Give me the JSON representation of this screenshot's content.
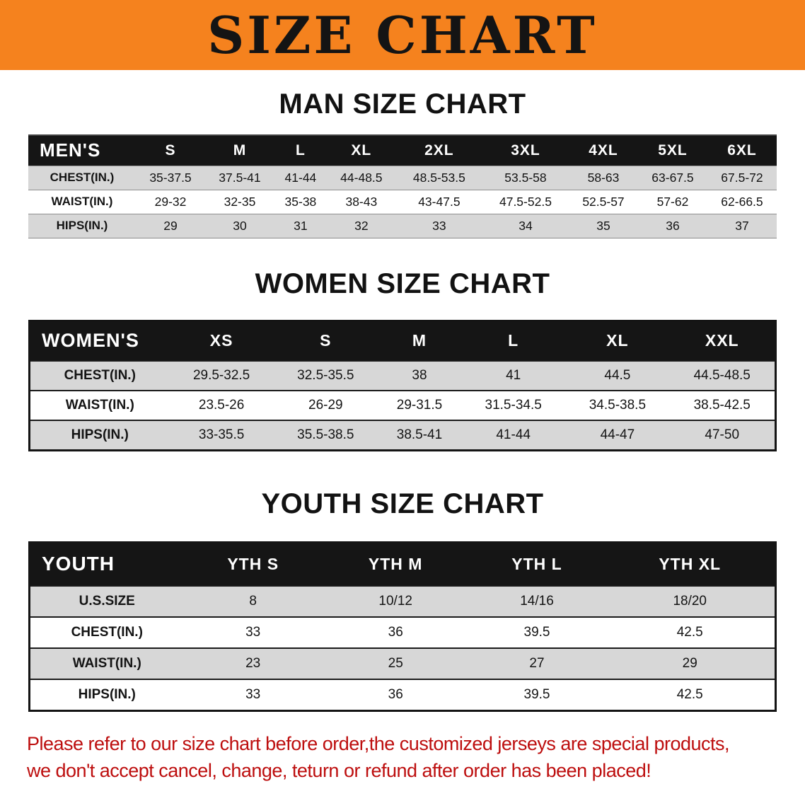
{
  "banner": {
    "title": "SIZE CHART"
  },
  "sections": [
    {
      "id": "men",
      "heading": "MAN SIZE CHART",
      "table": {
        "title": "MEN'S",
        "columns": [
          "S",
          "M",
          "L",
          "XL",
          "2XL",
          "3XL",
          "4XL",
          "5XL",
          "6XL"
        ],
        "rows": [
          {
            "label": "CHEST(IN.)",
            "values": [
              "35-37.5",
              "37.5-41",
              "41-44",
              "44-48.5",
              "48.5-53.5",
              "53.5-58",
              "58-63",
              "63-67.5",
              "67.5-72"
            ]
          },
          {
            "label": "WAIST(IN.)",
            "values": [
              "29-32",
              "32-35",
              "35-38",
              "38-43",
              "43-47.5",
              "47.5-52.5",
              "52.5-57",
              "57-62",
              "62-66.5"
            ]
          },
          {
            "label": "HIPS(IN.)",
            "values": [
              "29",
              "30",
              "31",
              "32",
              "33",
              "34",
              "35",
              "36",
              "37"
            ]
          }
        ]
      }
    },
    {
      "id": "women",
      "heading": "WOMEN SIZE CHART",
      "table": {
        "title": "WOMEN'S",
        "columns": [
          "XS",
          "S",
          "M",
          "L",
          "XL",
          "XXL"
        ],
        "rows": [
          {
            "label": "CHEST(IN.)",
            "values": [
              "29.5-32.5",
              "32.5-35.5",
              "38",
              "41",
              "44.5",
              "44.5-48.5"
            ]
          },
          {
            "label": "WAIST(IN.)",
            "values": [
              "23.5-26",
              "26-29",
              "29-31.5",
              "31.5-34.5",
              "34.5-38.5",
              "38.5-42.5"
            ]
          },
          {
            "label": "HIPS(IN.)",
            "values": [
              "33-35.5",
              "35.5-38.5",
              "38.5-41",
              "41-44",
              "44-47",
              "47-50"
            ]
          }
        ]
      }
    },
    {
      "id": "youth",
      "heading": "YOUTH SIZE CHART",
      "table": {
        "title": "YOUTH",
        "columns": [
          "YTH S",
          "YTH M",
          "YTH L",
          "YTH XL"
        ],
        "rows": [
          {
            "label": "U.S.SIZE",
            "values": [
              "8",
              "10/12",
              "14/16",
              "18/20"
            ]
          },
          {
            "label": "CHEST(IN.)",
            "values": [
              "33",
              "36",
              "39.5",
              "42.5"
            ]
          },
          {
            "label": "WAIST(IN.)",
            "values": [
              "23",
              "25",
              "27",
              "29"
            ]
          },
          {
            "label": "HIPS(IN.)",
            "values": [
              "33",
              "36",
              "39.5",
              "42.5"
            ]
          }
        ]
      }
    }
  ],
  "footer": {
    "lines": [
      "Please refer to our size chart before order,the customized jerseys are special products,",
      "we don't accept cancel, change, teturn or refund after order has been placed!"
    ]
  },
  "colors": {
    "banner_bg": "#f5821e",
    "header_bg": "#151515",
    "stripe": "#d7d7d7",
    "footer_text": "#bd0e0e"
  }
}
